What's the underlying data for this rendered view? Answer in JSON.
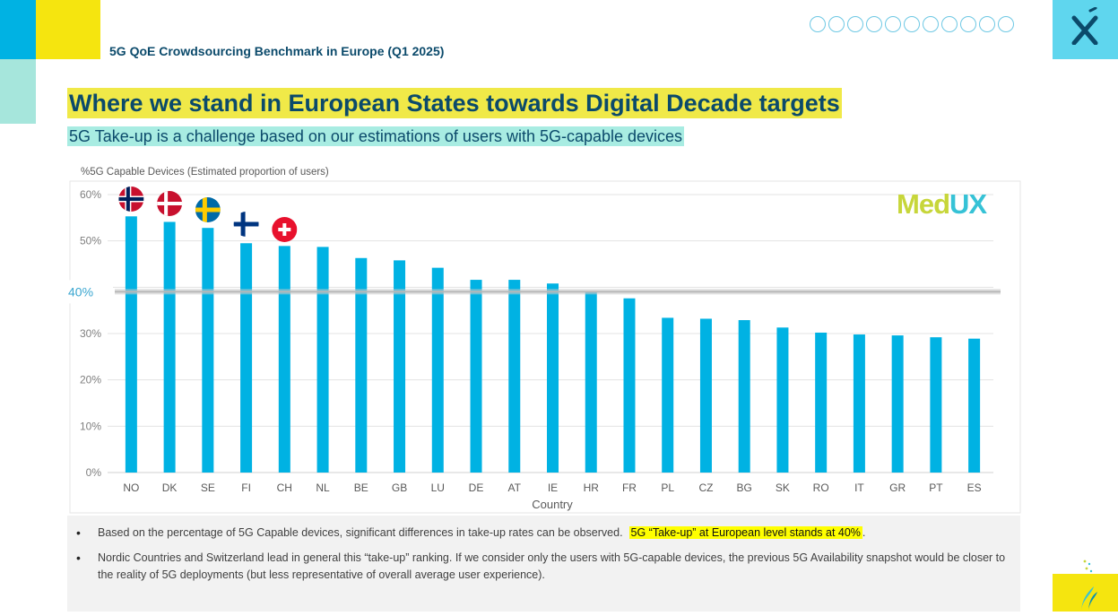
{
  "header": {
    "title": "5G QoE Crowdsourcing Benchmark in Europe (Q1 2025)"
  },
  "heading": {
    "title": "Where we stand in European States towards Digital Decade targets",
    "subtitle": "5G Take-up is a challenge based on our estimations of users with 5G-capable devices"
  },
  "brand": {
    "medux_part1": "Med",
    "medux_part2": "UX",
    "colors": {
      "med": "#c7d63a",
      "ux": "#36c2d6",
      "header_navy": "#0b4a6b",
      "bar": "#00b2e3"
    }
  },
  "icons": [
    "sitemap-icon",
    "globe-icon",
    "gamepad-icon",
    "google-plus-icon",
    "facebook-icon",
    "twitter-icon",
    "youtube-icon",
    "share-icon",
    "cloud-download-icon",
    "cloud-upload-icon",
    "dropbox-icon"
  ],
  "chart_data": {
    "type": "bar",
    "ylabel": "%5G Capable Devices (Estimated proportion of users)",
    "xlabel": "Country",
    "categories": [
      "NO",
      "DK",
      "SE",
      "FI",
      "CH",
      "NL",
      "BE",
      "GB",
      "LU",
      "DE",
      "AT",
      "IE",
      "HR",
      "FR",
      "PL",
      "CZ",
      "BG",
      "SK",
      "RO",
      "IT",
      "GR",
      "PT",
      "ES"
    ],
    "values": [
      55.3,
      54.1,
      52.8,
      49.5,
      48.9,
      48.7,
      46.3,
      45.8,
      44.2,
      41.6,
      41.6,
      40.8,
      39.2,
      37.6,
      33.4,
      33.2,
      32.9,
      31.3,
      30.2,
      29.8,
      29.6,
      29.2,
      28.9
    ],
    "ylim": [
      0,
      60
    ],
    "yticks": [
      "0%",
      "10%",
      "20%",
      "30%",
      "40%",
      "50%",
      "60%"
    ],
    "reference_line": {
      "value": 40,
      "label": "40%"
    },
    "flags": [
      "NO",
      "DK",
      "SE",
      "FI",
      "CH"
    ]
  },
  "notes": {
    "bullet": "•",
    "note1_text": "Based on the percentage of 5G Capable devices, significant differences in take-up rates can be observed.",
    "note1_highlight": "5G “Take-up” at European level stands at 40%",
    "note1_end": ".",
    "note2_text": "Nordic Countries and Switzerland lead in general this “take-up” ranking. If we consider only the users with 5G-capable devices, the previous 5G Availability snapshot would be closer to the reality of 5G deployments (but less representative of overall average user experience)."
  }
}
